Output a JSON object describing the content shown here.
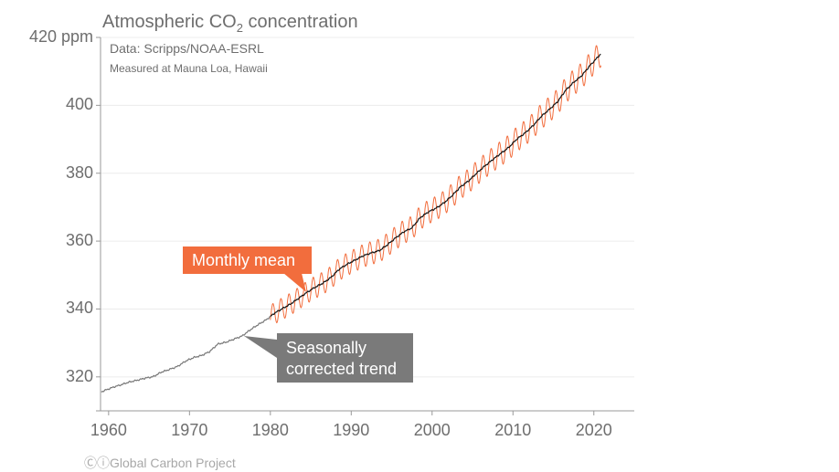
{
  "chart_data": {
    "type": "line",
    "title": "Atmospheric CO",
    "title_subscript": "2",
    "title_suffix": " concentration",
    "subtitle": "Data: Scripps/NOAA-ESRL",
    "note": "Measured at Mauna Loa, Hawaii",
    "ylabel_unit": "ppm",
    "ylim": [
      310,
      420
    ],
    "xlim": [
      1959,
      2025
    ],
    "yticks": [
      "420 ppm",
      "400",
      "380",
      "360",
      "340",
      "320"
    ],
    "ytick_values": [
      420,
      400,
      380,
      360,
      340,
      320
    ],
    "xticks": [
      "1960",
      "1970",
      "1980",
      "1990",
      "2000",
      "2010",
      "2020"
    ],
    "grid": "horizontal",
    "series": [
      {
        "name": "Seasonally corrected trend",
        "color": "#777777",
        "color_after_1980": "#111111",
        "x": [
          1959,
          1960,
          1961,
          1962,
          1963,
          1964,
          1965,
          1966,
          1967,
          1968,
          1969,
          1970,
          1971,
          1972,
          1973,
          1974,
          1975,
          1976,
          1977,
          1978,
          1979,
          1980,
          1981,
          1982,
          1983,
          1984,
          1985,
          1986,
          1987,
          1988,
          1989,
          1990,
          1991,
          1992,
          1993,
          1994,
          1995,
          1996,
          1997,
          1998,
          1999,
          2000,
          2001,
          2002,
          2003,
          2004,
          2005,
          2006,
          2007,
          2008,
          2009,
          2010,
          2011,
          2012,
          2013,
          2014,
          2015,
          2016,
          2017,
          2018,
          2019,
          2020
        ],
        "values": [
          315.98,
          316.91,
          317.64,
          318.45,
          318.99,
          319.62,
          320.04,
          321.37,
          322.18,
          323.05,
          324.62,
          325.68,
          326.32,
          327.46,
          329.68,
          330.19,
          331.12,
          332.03,
          333.84,
          335.41,
          336.84,
          338.76,
          340.12,
          341.48,
          343.15,
          344.87,
          346.35,
          347.61,
          349.31,
          351.69,
          353.2,
          354.45,
          355.7,
          356.54,
          357.21,
          358.96,
          360.97,
          362.74,
          363.88,
          366.84,
          368.54,
          369.71,
          371.32,
          373.45,
          375.98,
          377.7,
          379.98,
          382.09,
          384.02,
          385.83,
          387.64,
          390.1,
          391.85,
          394.06,
          396.74,
          398.81,
          401.01,
          404.41,
          406.76,
          408.72,
          411.66,
          414.24
        ]
      },
      {
        "name": "Monthly mean",
        "color": "#f26d3d",
        "start_year": 1980,
        "seasonal_amplitude_ppm": 3.2
      }
    ],
    "annotations": [
      {
        "text": "Monthly mean",
        "color": "#f26d3d"
      },
      {
        "text": "Seasonally corrected trend",
        "line1": "Seasonally",
        "line2": "corrected trend",
        "color": "#7a7a7a"
      }
    ]
  },
  "credit": "Global Carbon Project",
  "credit_icons": [
    "cc-icon",
    "by-icon"
  ]
}
